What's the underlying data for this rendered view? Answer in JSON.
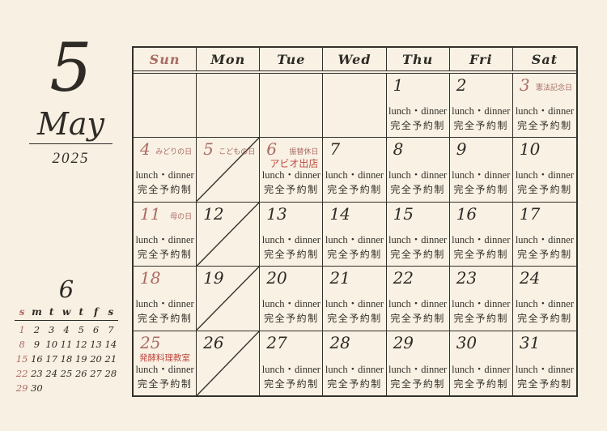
{
  "colors": {
    "pink": "#aa6a63",
    "red": "#bf4a40",
    "ink": "#2e2b26",
    "line": "#33312c",
    "background": "#f8f0e2"
  },
  "month_panel": {
    "month_number": "5",
    "month_name": "May",
    "year": "2025"
  },
  "weekdays": [
    "Sun",
    "Mon",
    "Tue",
    "Wed",
    "Thu",
    "Fri",
    "Sat"
  ],
  "labels": {
    "lunch_line1": "lunch・dinner",
    "lunch_line2": "完全予約制"
  },
  "cells": [
    {
      "day": "",
      "lunch": false
    },
    {
      "day": "",
      "lunch": false
    },
    {
      "day": "",
      "lunch": false
    },
    {
      "day": "",
      "lunch": false
    },
    {
      "day": "1",
      "lunch": true
    },
    {
      "day": "2",
      "lunch": true
    },
    {
      "day": "3",
      "pink": true,
      "holiday": "憲法記念日",
      "lunch": true
    },
    {
      "day": "4",
      "pink": true,
      "holiday": "みどりの日",
      "lunch": true
    },
    {
      "day": "5",
      "pink": true,
      "holiday": "こどもの日",
      "closed": true
    },
    {
      "day": "6",
      "pink": true,
      "holiday": "振替休日",
      "event": "アビオ出店",
      "event_pos": "right",
      "lunch": true
    },
    {
      "day": "7",
      "lunch": true
    },
    {
      "day": "8",
      "lunch": true
    },
    {
      "day": "9",
      "lunch": true
    },
    {
      "day": "10",
      "lunch": true
    },
    {
      "day": "11",
      "pink": true,
      "holiday": "母の日",
      "lunch": true
    },
    {
      "day": "12",
      "closed": true
    },
    {
      "day": "13",
      "lunch": true
    },
    {
      "day": "14",
      "lunch": true
    },
    {
      "day": "15",
      "lunch": true
    },
    {
      "day": "16",
      "lunch": true
    },
    {
      "day": "17",
      "lunch": true
    },
    {
      "day": "18",
      "pink": true,
      "lunch": true
    },
    {
      "day": "19",
      "closed": true
    },
    {
      "day": "20",
      "lunch": true
    },
    {
      "day": "21",
      "lunch": true
    },
    {
      "day": "22",
      "lunch": true
    },
    {
      "day": "23",
      "lunch": true
    },
    {
      "day": "24",
      "lunch": true
    },
    {
      "day": "25",
      "pink": true,
      "event": "発酵料理教室",
      "event_pos": "under",
      "lunch": true
    },
    {
      "day": "26",
      "closed": true
    },
    {
      "day": "27",
      "lunch": true
    },
    {
      "day": "28",
      "lunch": true
    },
    {
      "day": "29",
      "lunch": true
    },
    {
      "day": "30",
      "lunch": true
    },
    {
      "day": "31",
      "lunch": true
    }
  ],
  "mini_calendar": {
    "title": "6",
    "weekday_letters": [
      "s",
      "m",
      "t",
      "w",
      "t",
      "f",
      "s"
    ],
    "weeks": [
      [
        "1",
        "2",
        "3",
        "4",
        "5",
        "6",
        "7"
      ],
      [
        "8",
        "9",
        "10",
        "11",
        "12",
        "13",
        "14"
      ],
      [
        "15",
        "16",
        "17",
        "18",
        "19",
        "20",
        "21"
      ],
      [
        "22",
        "23",
        "24",
        "25",
        "26",
        "27",
        "28"
      ],
      [
        "29",
        "30",
        "",
        "",
        "",
        "",
        ""
      ]
    ]
  }
}
